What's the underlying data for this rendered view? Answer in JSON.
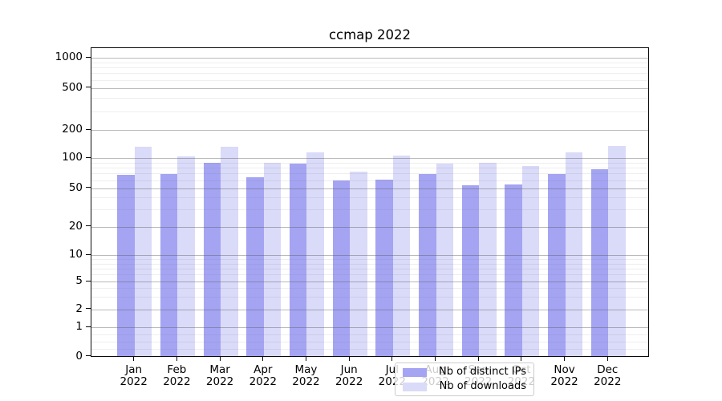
{
  "title": "ccmap 2022",
  "legend": {
    "items": [
      {
        "label": "Nb of distinct IPs",
        "color": "#a4a4f3"
      },
      {
        "label": "Nb of downloads",
        "color": "#dadaf9"
      }
    ]
  },
  "chart_data": {
    "type": "bar",
    "title": "ccmap 2022",
    "months": [
      "Jan",
      "Feb",
      "Mar",
      "Apr",
      "May",
      "Jun",
      "Jul",
      "Aug",
      "Sep",
      "Oct",
      "Nov",
      "Dec"
    ],
    "year_label": "2022",
    "categories": [
      "Jan 2022",
      "Feb 2022",
      "Mar 2022",
      "Apr 2022",
      "May 2022",
      "Jun 2022",
      "Jul 2022",
      "Aug 2022",
      "Sep 2022",
      "Oct 2022",
      "Nov 2022",
      "Dec 2022"
    ],
    "series": [
      {
        "name": "Nb of distinct IPs",
        "color": "#a4a4f3",
        "values": [
          65,
          66,
          87,
          62,
          84,
          57,
          59,
          67,
          51,
          52,
          66,
          74
        ]
      },
      {
        "name": "Nb of downloads",
        "color": "#dadaf9",
        "values": [
          128,
          101,
          127,
          87,
          111,
          70,
          103,
          84,
          86,
          80,
          110,
          130
        ]
      }
    ],
    "y_ticks": [
      1000,
      500,
      200,
      100,
      50,
      20,
      10,
      5,
      2,
      1,
      0
    ],
    "yscale": "symlog",
    "ylim": [
      0,
      1300
    ],
    "grid": true,
    "legend_position": "lower center",
    "grid_major_color": "#b0b0b0",
    "grid_minor_color": "#e4e4e4"
  }
}
